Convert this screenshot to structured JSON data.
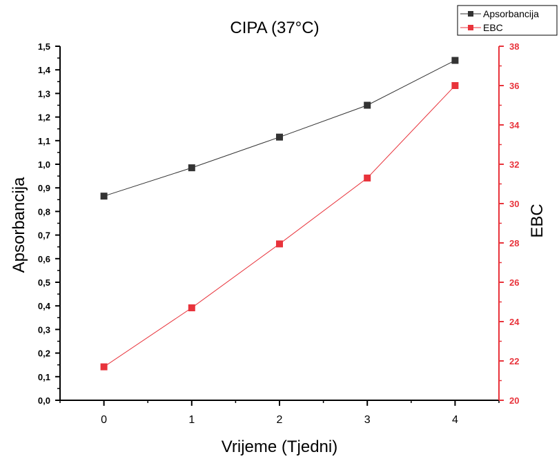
{
  "chart_data": {
    "type": "line",
    "title": "CIPA (37°C)",
    "xlabel": "Vrijeme (Tjedni)",
    "ylabel": "Apsorbancija",
    "y2label": "EBC",
    "x": [
      0,
      1,
      2,
      3,
      4
    ],
    "xlim": [
      -0.5,
      4.5
    ],
    "x_ticks": [
      "0",
      "1",
      "2",
      "3",
      "4"
    ],
    "ylim": [
      0,
      1.5
    ],
    "y_ticks": [
      "0,0",
      "0,1",
      "0,2",
      "0,3",
      "0,4",
      "0,5",
      "0,6",
      "0,7",
      "0,8",
      "0,9",
      "1,0",
      "1,1",
      "1,2",
      "1,3",
      "1,4",
      "1,5"
    ],
    "y2lim": [
      20,
      38
    ],
    "y2_ticks": [
      "20",
      "22",
      "24",
      "26",
      "28",
      "30",
      "32",
      "34",
      "36",
      "38"
    ],
    "grid": false,
    "legend_position": "top-right",
    "series": [
      {
        "name": "Apsorbancija",
        "axis": "left",
        "color": "#333333",
        "marker": "square",
        "values": [
          0.865,
          0.985,
          1.115,
          1.25,
          1.44
        ]
      },
      {
        "name": "EBC",
        "axis": "right",
        "color": "#e8333b",
        "marker": "square",
        "values": [
          21.7,
          24.7,
          27.95,
          31.3,
          36.0
        ]
      }
    ]
  }
}
